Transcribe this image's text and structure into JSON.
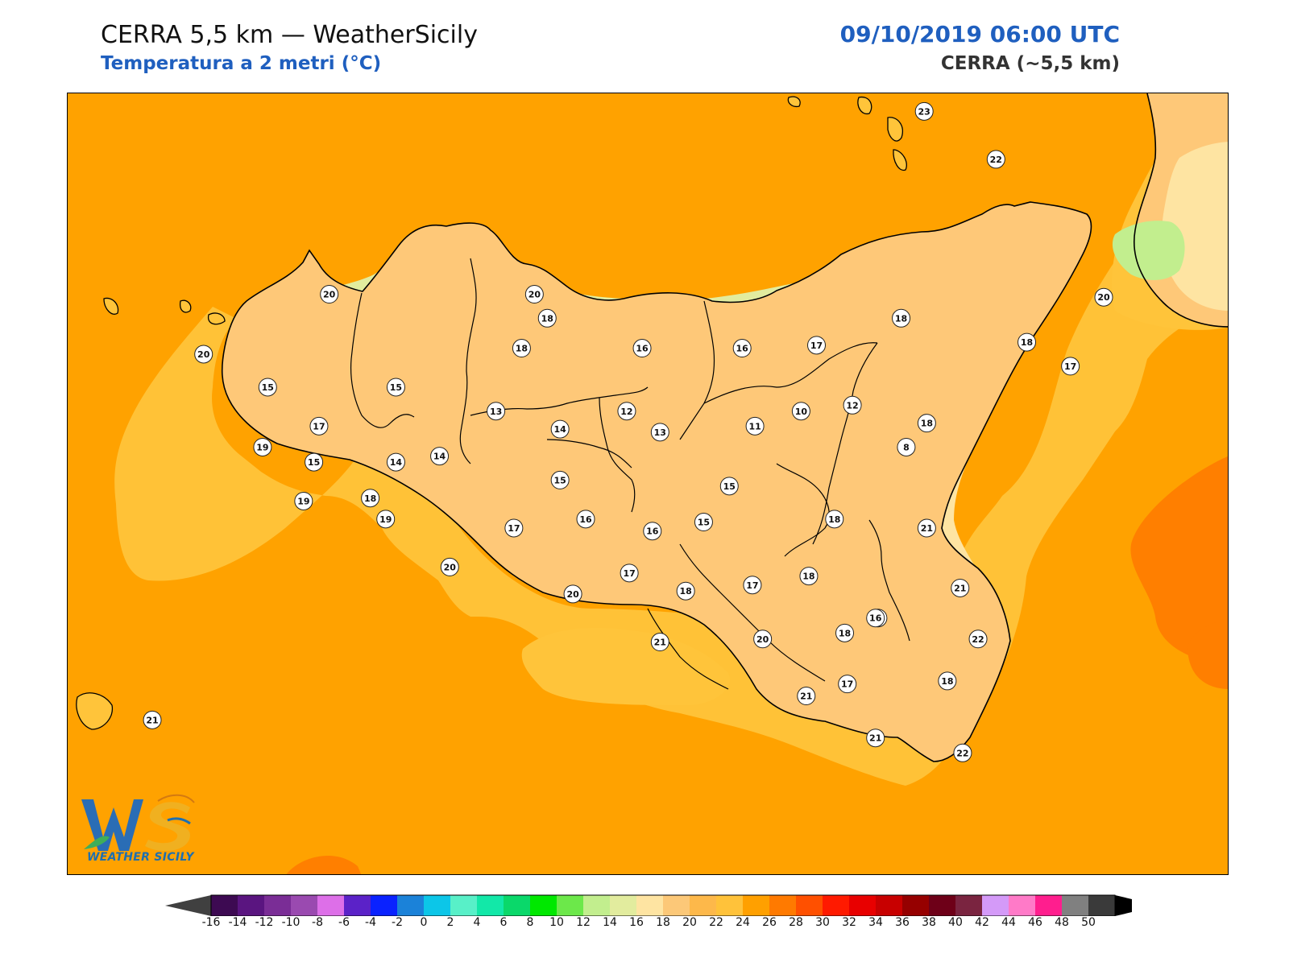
{
  "header": {
    "title": "CERRA 5,5 km — WeatherSicily",
    "subtitle": "Temperatura a 2 metri (°C)",
    "datetime": "09/10/2019 06:00 UTC",
    "model": "CERRA (~5,5 km)"
  },
  "logo": {
    "text": "WEATHER SICILY",
    "initials": "WS"
  },
  "colorbar": {
    "labels": [
      "-16",
      "-14",
      "-12",
      "-10",
      "-8",
      "-6",
      "-4",
      "-2",
      "0",
      "2",
      "4",
      "6",
      "8",
      "10",
      "12",
      "14",
      "16",
      "18",
      "20",
      "22",
      "24",
      "26",
      "28",
      "30",
      "32",
      "34",
      "36",
      "38",
      "40",
      "42",
      "44",
      "46",
      "48",
      "50"
    ],
    "colors": [
      "#3d0a52",
      "#5a1580",
      "#7a2d96",
      "#9a4ab0",
      "#dd6fe8",
      "#5b22c8",
      "#0a22ff",
      "#1b82d9",
      "#0cc6e8",
      "#58f0c8",
      "#12e8a8",
      "#0ad86a",
      "#00e800",
      "#6ce84a",
      "#c2ee8e",
      "#e2ec9e",
      "#fee4a2",
      "#fcc878",
      "#fdb84a",
      "#ffc23a",
      "#ffa000",
      "#ff7a00",
      "#ff5000",
      "#ff1a00",
      "#e80000",
      "#c80000",
      "#960000",
      "#6e0018",
      "#7a2440",
      "#d49af8",
      "#ff7ac8",
      "#ff1e8e",
      "#808080",
      "#3a3a3a"
    ],
    "under_color": "#404040",
    "over_color": "#000000"
  },
  "stations": [
    {
      "v": "23",
      "lon": 14.96,
      "lat": 38.8
    },
    {
      "v": "22",
      "lon": 15.24,
      "lat": 38.64
    },
    {
      "v": "20",
      "lon": 12.64,
      "lat": 38.19
    },
    {
      "v": "20",
      "lon": 13.44,
      "lat": 38.19
    },
    {
      "v": "18",
      "lon": 13.49,
      "lat": 38.11
    },
    {
      "v": "20",
      "lon": 12.15,
      "lat": 37.99
    },
    {
      "v": "15",
      "lon": 12.4,
      "lat": 37.88
    },
    {
      "v": "15",
      "lon": 12.9,
      "lat": 37.88
    },
    {
      "v": "18",
      "lon": 13.39,
      "lat": 38.01
    },
    {
      "v": "16",
      "lon": 13.86,
      "lat": 38.01
    },
    {
      "v": "16",
      "lon": 14.25,
      "lat": 38.01
    },
    {
      "v": "17",
      "lon": 14.54,
      "lat": 38.02
    },
    {
      "v": "18",
      "lon": 14.87,
      "lat": 38.11
    },
    {
      "v": "18",
      "lon": 15.36,
      "lat": 38.03
    },
    {
      "v": "17",
      "lon": 15.53,
      "lat": 37.95
    },
    {
      "v": "20",
      "lon": 15.66,
      "lat": 38.18
    },
    {
      "v": "13",
      "lon": 13.29,
      "lat": 37.8
    },
    {
      "v": "14",
      "lon": 13.54,
      "lat": 37.74
    },
    {
      "v": "12",
      "lon": 13.8,
      "lat": 37.8
    },
    {
      "v": "13",
      "lon": 13.93,
      "lat": 37.73
    },
    {
      "v": "11",
      "lon": 14.3,
      "lat": 37.75
    },
    {
      "v": "10",
      "lon": 14.48,
      "lat": 37.8
    },
    {
      "v": "12",
      "lon": 14.68,
      "lat": 37.82
    },
    {
      "v": "18",
      "lon": 14.97,
      "lat": 37.76
    },
    {
      "v": "8",
      "lon": 14.89,
      "lat": 37.68
    },
    {
      "v": "17",
      "lon": 12.6,
      "lat": 37.75
    },
    {
      "v": "19",
      "lon": 12.38,
      "lat": 37.68
    },
    {
      "v": "15",
      "lon": 12.58,
      "lat": 37.63
    },
    {
      "v": "14",
      "lon": 12.9,
      "lat": 37.63
    },
    {
      "v": "14",
      "lon": 13.07,
      "lat": 37.65
    },
    {
      "v": "15",
      "lon": 13.54,
      "lat": 37.57
    },
    {
      "v": "15",
      "lon": 14.2,
      "lat": 37.55
    },
    {
      "v": "19",
      "lon": 12.54,
      "lat": 37.5
    },
    {
      "v": "18",
      "lon": 12.8,
      "lat": 37.51
    },
    {
      "v": "19",
      "lon": 12.86,
      "lat": 37.44
    },
    {
      "v": "17",
      "lon": 13.36,
      "lat": 37.41
    },
    {
      "v": "16",
      "lon": 13.64,
      "lat": 37.44
    },
    {
      "v": "16",
      "lon": 13.9,
      "lat": 37.4
    },
    {
      "v": "15",
      "lon": 14.1,
      "lat": 37.43
    },
    {
      "v": "18",
      "lon": 14.61,
      "lat": 37.44
    },
    {
      "v": "21",
      "lon": 14.97,
      "lat": 37.41
    },
    {
      "v": "20",
      "lon": 13.11,
      "lat": 37.28
    },
    {
      "v": "17",
      "lon": 13.81,
      "lat": 37.26
    },
    {
      "v": "18",
      "lon": 14.03,
      "lat": 37.2
    },
    {
      "v": "17",
      "lon": 14.29,
      "lat": 37.22
    },
    {
      "v": "18",
      "lon": 14.51,
      "lat": 37.25
    },
    {
      "v": "20",
      "lon": 13.59,
      "lat": 37.19
    },
    {
      "v": "21",
      "lon": 15.1,
      "lat": 37.21
    },
    {
      "v": "18",
      "lon": 14.78,
      "lat": 37.11
    },
    {
      "v": "21",
      "lon": 13.93,
      "lat": 37.03
    },
    {
      "v": "20",
      "lon": 14.33,
      "lat": 37.04
    },
    {
      "v": "18",
      "lon": 14.65,
      "lat": 37.06
    },
    {
      "v": "16",
      "lon": 14.77,
      "lat": 37.11
    },
    {
      "v": "22",
      "lon": 15.17,
      "lat": 37.04
    },
    {
      "v": "17",
      "lon": 14.66,
      "lat": 36.89
    },
    {
      "v": "18",
      "lon": 15.05,
      "lat": 36.9
    },
    {
      "v": "21",
      "lon": 14.5,
      "lat": 36.85
    },
    {
      "v": "21",
      "lon": 11.95,
      "lat": 36.77
    },
    {
      "v": "21",
      "lon": 14.77,
      "lat": 36.71
    },
    {
      "v": "22",
      "lon": 15.11,
      "lat": 36.66
    }
  ]
}
